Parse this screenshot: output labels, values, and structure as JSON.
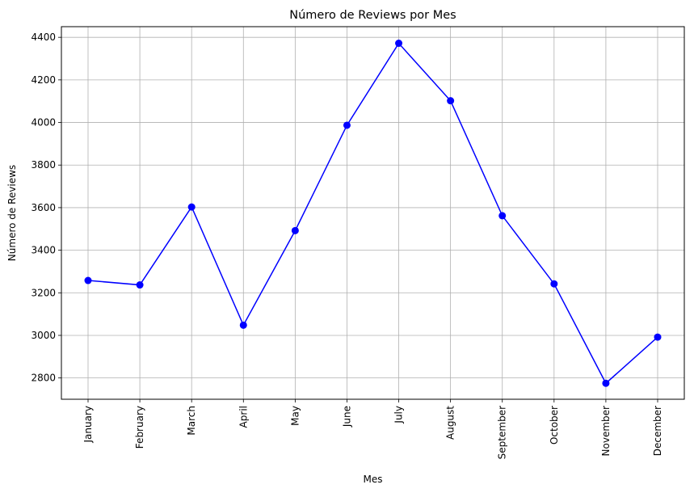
{
  "chart_data": {
    "type": "line",
    "title": "Número de Reviews por Mes",
    "xlabel": "Mes",
    "ylabel": "Número de Reviews",
    "categories": [
      "January",
      "February",
      "March",
      "April",
      "May",
      "June",
      "July",
      "August",
      "September",
      "October",
      "November",
      "December"
    ],
    "series": [
      {
        "values": [
          3258,
          3237,
          3603,
          3048,
          3492,
          3987,
          4372,
          4102,
          3562,
          3242,
          2775,
          2992
        ],
        "color": "#0000ff",
        "marker": "circle"
      }
    ],
    "ylim": [
      2700,
      4450
    ],
    "yticks": [
      2800,
      3000,
      3200,
      3400,
      3600,
      3800,
      4000,
      4200,
      4400
    ],
    "grid": true,
    "legend": "none"
  }
}
